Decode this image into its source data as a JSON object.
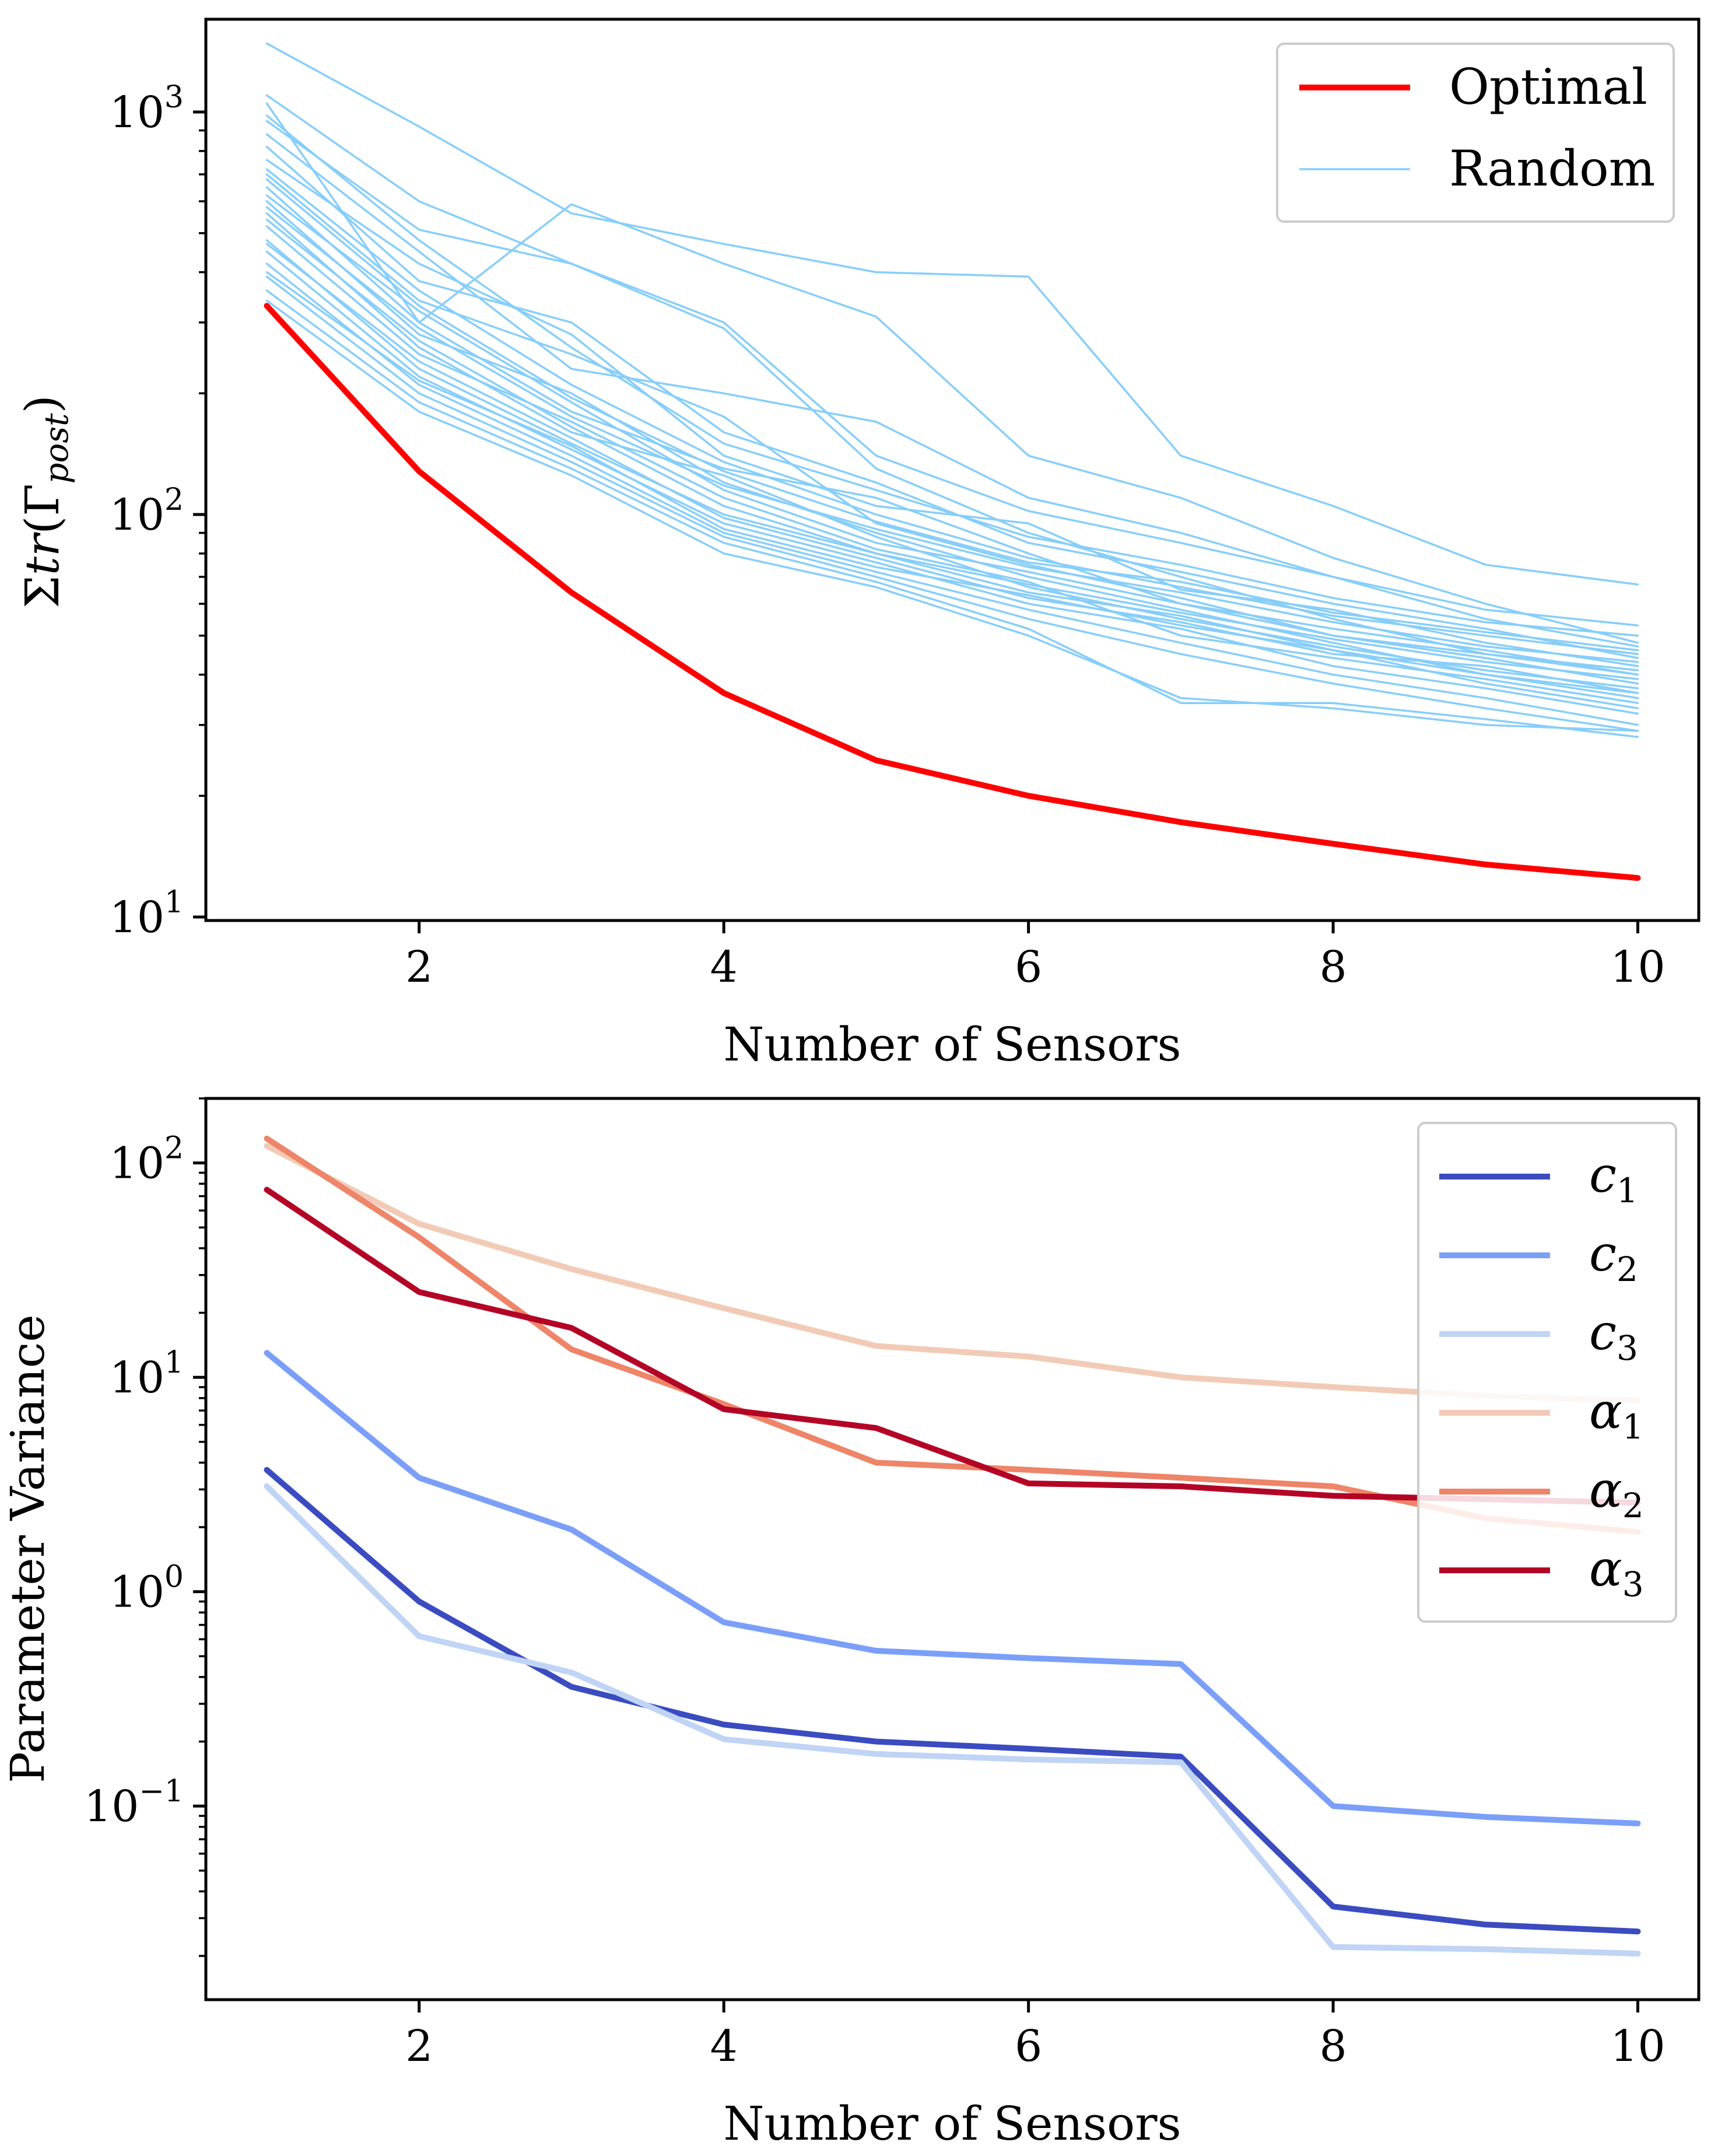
{
  "chart_data": [
    {
      "type": "line",
      "xlabel": "Number of Sensors",
      "ylabel": "Σtr(Γpost)",
      "ylabel_parts": {
        "prefix": "Σ",
        "italic": "tr",
        "open": "(Γ",
        "subscript": "post",
        "close": ")"
      },
      "yscale": "log",
      "xlim": [
        0.6,
        10.4
      ],
      "ylim": [
        9.8,
        1700
      ],
      "xticks": [
        2,
        4,
        6,
        8,
        10
      ],
      "xtick_labels": [
        "2",
        "4",
        "6",
        "8",
        "10"
      ],
      "yticks": [
        10,
        100,
        1000
      ],
      "ytick_labels": [
        {
          "base": "10",
          "exp": "1"
        },
        {
          "base": "10",
          "exp": "2"
        },
        {
          "base": "10",
          "exp": "3"
        }
      ],
      "x": [
        1,
        2,
        3,
        4,
        5,
        6,
        7,
        8,
        9,
        10
      ],
      "legend": {
        "position": "top-right",
        "entries": [
          {
            "name": "Optimal",
            "color": "#ff0000"
          },
          {
            "name": "Random",
            "color": "#87cefa"
          }
        ]
      },
      "series": [
        {
          "name": "Optimal",
          "color": "#ff0000",
          "values": [
            330,
            128,
            64,
            36,
            24.5,
            20,
            17.2,
            15.2,
            13.5,
            12.5
          ]
        },
        {
          "name": "Random",
          "color": "#87cefa",
          "values": [
            1480,
            920,
            560,
            470,
            400,
            390,
            140,
            105,
            75,
            67
          ]
        },
        {
          "name": "Random",
          "color": "#87cefa",
          "values": [
            1100,
            600,
            420,
            300,
            140,
            102,
            85,
            70,
            58,
            53
          ]
        },
        {
          "name": "Random",
          "color": "#87cefa",
          "values": [
            1050,
            300,
            590,
            420,
            310,
            140,
            110,
            78,
            60,
            48
          ]
        },
        {
          "name": "Random",
          "color": "#87cefa",
          "values": [
            950,
            510,
            420,
            290,
            130,
            90,
            70,
            55,
            45,
            40
          ]
        },
        {
          "name": "Random",
          "color": "#87cefa",
          "values": [
            880,
            450,
            230,
            200,
            170,
            110,
            90,
            70,
            55,
            47
          ]
        },
        {
          "name": "Random",
          "color": "#87cefa",
          "values": [
            820,
            380,
            300,
            160,
            120,
            85,
            72,
            60,
            52,
            44
          ]
        },
        {
          "name": "Random",
          "color": "#87cefa",
          "values": [
            760,
            420,
            280,
            140,
            105,
            95,
            65,
            58,
            48,
            42
          ]
        },
        {
          "name": "Random",
          "color": "#87cefa",
          "values": [
            700,
            340,
            250,
            175,
            95,
            75,
            62,
            50,
            44,
            38
          ]
        },
        {
          "name": "Random",
          "color": "#87cefa",
          "values": [
            650,
            300,
            180,
            130,
            110,
            80,
            60,
            52,
            46,
            40
          ]
        },
        {
          "name": "Random",
          "color": "#87cefa",
          "values": [
            600,
            280,
            200,
            120,
            90,
            70,
            58,
            48,
            40,
            36
          ]
        },
        {
          "name": "Random",
          "color": "#87cefa",
          "values": [
            560,
            260,
            160,
            125,
            88,
            66,
            55,
            47,
            41,
            37
          ]
        },
        {
          "name": "Random",
          "color": "#87cefa",
          "values": [
            520,
            250,
            170,
            110,
            82,
            68,
            50,
            44,
            39,
            34
          ]
        },
        {
          "name": "Random",
          "color": "#87cefa",
          "values": [
            480,
            230,
            150,
            100,
            80,
            64,
            56,
            46,
            38,
            33
          ]
        },
        {
          "name": "Random",
          "color": "#87cefa",
          "values": [
            450,
            220,
            145,
            95,
            76,
            60,
            52,
            42,
            37,
            32
          ]
        },
        {
          "name": "Random",
          "color": "#87cefa",
          "values": [
            420,
            210,
            140,
            90,
            72,
            58,
            48,
            40,
            35,
            30
          ]
        },
        {
          "name": "Random",
          "color": "#87cefa",
          "values": [
            390,
            200,
            135,
            88,
            70,
            55,
            45,
            38,
            33,
            29
          ]
        },
        {
          "name": "Random",
          "color": "#87cefa",
          "values": [
            360,
            190,
            130,
            85,
            68,
            52,
            34,
            34,
            31,
            28
          ]
        },
        {
          "name": "Random",
          "color": "#87cefa",
          "values": [
            340,
            180,
            125,
            80,
            66,
            50,
            35,
            33,
            30,
            29
          ]
        },
        {
          "name": "Random",
          "color": "#87cefa",
          "values": [
            620,
            320,
            190,
            115,
            85,
            72,
            60,
            50,
            45,
            41
          ]
        },
        {
          "name": "Random",
          "color": "#87cefa",
          "values": [
            540,
            270,
            165,
            105,
            80,
            67,
            57,
            49,
            43,
            39
          ]
        },
        {
          "name": "Random",
          "color": "#87cefa",
          "values": [
            470,
            240,
            155,
            98,
            78,
            62,
            54,
            45,
            42,
            36
          ]
        },
        {
          "name": "Random",
          "color": "#87cefa",
          "values": [
            720,
            360,
            210,
            135,
            100,
            78,
            66,
            56,
            50,
            45
          ]
        },
        {
          "name": "Random",
          "color": "#87cefa",
          "values": [
            980,
            480,
            260,
            150,
            115,
            88,
            75,
            62,
            54,
            50
          ]
        },
        {
          "name": "Random",
          "color": "#87cefa",
          "values": [
            400,
            215,
            148,
            92,
            74,
            63,
            53,
            46,
            40,
            35
          ]
        },
        {
          "name": "Random",
          "color": "#87cefa",
          "values": [
            580,
            290,
            175,
            118,
            92,
            74,
            64,
            54,
            47,
            43
          ]
        },
        {
          "name": "Random",
          "color": "#87cefa",
          "values": [
            680,
            330,
            195,
            128,
            96,
            76,
            68,
            57,
            51,
            46
          ]
        }
      ]
    },
    {
      "type": "line",
      "xlabel": "Number of Sensors",
      "ylabel": "Parameter Variance",
      "yscale": "log",
      "xlim": [
        0.6,
        10.4
      ],
      "ylim": [
        0.0125,
        200
      ],
      "xticks": [
        2,
        4,
        6,
        8,
        10
      ],
      "xtick_labels": [
        "2",
        "4",
        "6",
        "8",
        "10"
      ],
      "yticks": [
        0.1,
        1,
        10,
        100
      ],
      "ytick_labels": [
        {
          "base": "10",
          "exp": "−1"
        },
        {
          "base": "10",
          "exp": "0"
        },
        {
          "base": "10",
          "exp": "1"
        },
        {
          "base": "10",
          "exp": "2"
        }
      ],
      "x": [
        1,
        2,
        3,
        4,
        5,
        6,
        7,
        8,
        9,
        10
      ],
      "legend": {
        "position": "top-right"
      },
      "series": [
        {
          "name": "c1",
          "symbol": "c",
          "sub": "1",
          "color": "#3b4cc0",
          "values": [
            3.7,
            0.9,
            0.36,
            0.24,
            0.2,
            0.185,
            0.17,
            0.034,
            0.028,
            0.026
          ]
        },
        {
          "name": "c2",
          "symbol": "c",
          "sub": "2",
          "color": "#7b9ff9",
          "values": [
            13,
            3.4,
            1.95,
            0.72,
            0.53,
            0.49,
            0.46,
            0.1,
            0.089,
            0.083
          ]
        },
        {
          "name": "c3",
          "symbol": "c",
          "sub": "3",
          "color": "#c0d4f5",
          "values": [
            3.1,
            0.62,
            0.42,
            0.205,
            0.175,
            0.165,
            0.16,
            0.022,
            0.0215,
            0.0205
          ]
        },
        {
          "name": "α1",
          "symbol": "α",
          "sub": "1",
          "color": "#f2cbb7",
          "values": [
            120,
            52,
            32,
            21,
            14,
            12.5,
            10,
            9,
            8.2,
            7.8
          ]
        },
        {
          "name": "α2",
          "symbol": "α",
          "sub": "2",
          "color": "#ee8468",
          "values": [
            130,
            45,
            13.5,
            7.5,
            4,
            3.7,
            3.4,
            3.1,
            2.2,
            1.9
          ]
        },
        {
          "name": "α3",
          "symbol": "α",
          "sub": "3",
          "color": "#b40426",
          "values": [
            75,
            25,
            17,
            7.1,
            5.8,
            3.2,
            3.1,
            2.8,
            2.7,
            2.6
          ]
        }
      ]
    }
  ]
}
